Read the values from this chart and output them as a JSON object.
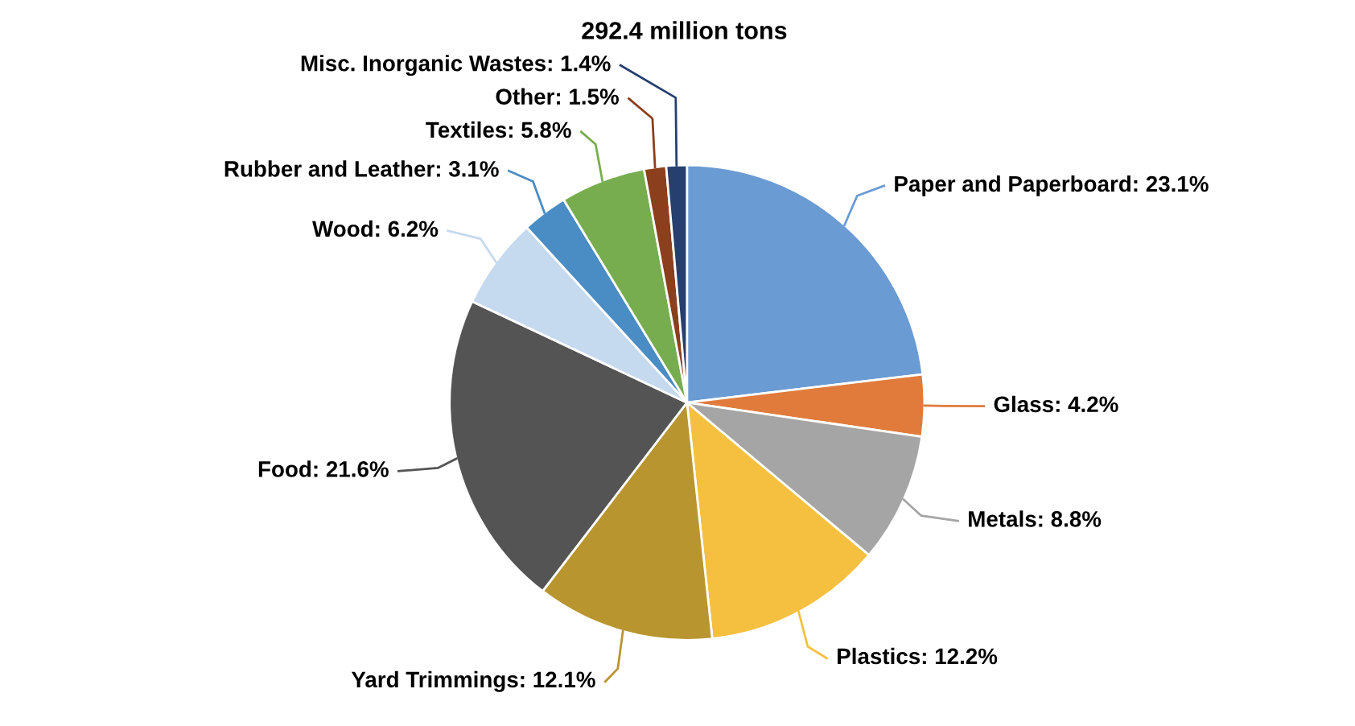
{
  "chart_data": {
    "type": "pie",
    "title": "292.4 million tons",
    "categories": [
      "Paper and Paperboard",
      "Glass",
      "Metals",
      "Plastics",
      "Yard Trimmings",
      "Food",
      "Wood",
      "Rubber and Leather",
      "Textiles",
      "Other",
      "Misc. Inorganic Wastes"
    ],
    "values": [
      23.1,
      4.2,
      8.8,
      12.2,
      12.1,
      21.6,
      6.2,
      3.1,
      5.8,
      1.5,
      1.4
    ],
    "value_labels": [
      "23.1%",
      "4.2%",
      "8.8%",
      "12.2%",
      "12.1%",
      "21.6%",
      "6.2%",
      "3.1%",
      "5.8%",
      "1.5%",
      "1.4%"
    ],
    "colors": [
      "#6a9bd3",
      "#e07b3c",
      "#a5a5a5",
      "#f5c040",
      "#b8952f",
      "#545454",
      "#c5d9ef",
      "#4a8cc4",
      "#78ad4f",
      "#8c3f1c",
      "#263f6e"
    ],
    "legend": false
  }
}
